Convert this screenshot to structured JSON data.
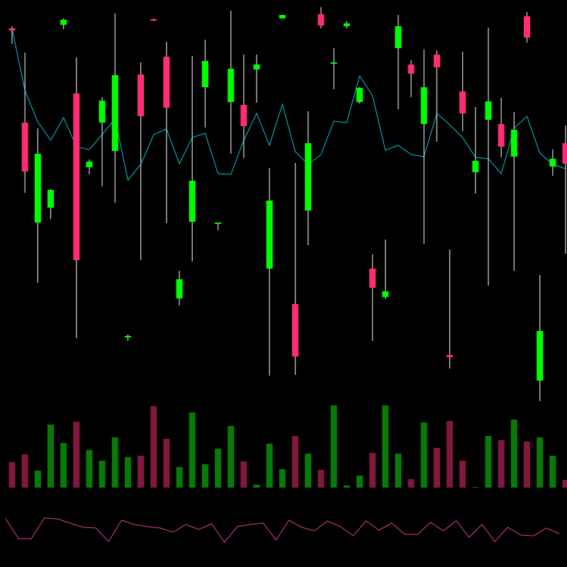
{
  "colors": {
    "background": "#000000",
    "bull_candle": "#00ff00",
    "bear_candle": "#ff2d78",
    "wick": "#c8c8c8",
    "bull_volume": "#087a08",
    "bear_volume": "#801840",
    "moving_average": "#00c8d8",
    "oscillator": "#e040a0"
  },
  "chart_data": [
    {
      "type": "candlestick",
      "title": "",
      "grid": false,
      "ohlc": [
        [
          56.0,
          56.3,
          53.8,
          55.7
        ],
        [
          42.7,
          52.6,
          32.8,
          35.8
        ],
        [
          28.6,
          41.9,
          20.1,
          38.3
        ],
        [
          30.7,
          33.3,
          29.1,
          33.2
        ],
        [
          56.5,
          57.4,
          55.9,
          57.2
        ],
        [
          46.8,
          51.9,
          12.3,
          23.3
        ],
        [
          36.4,
          37.5,
          35.4,
          37.2
        ],
        [
          42.7,
          46.3,
          33.7,
          45.8
        ],
        [
          38.7,
          58.1,
          31.4,
          49.4
        ],
        [
          12.5,
          12.8,
          11.9,
          12.6
        ],
        [
          49.5,
          51.2,
          23.3,
          43.6
        ],
        [
          57.3,
          57.4,
          57.0,
          57.1
        ],
        [
          52.0,
          54.1,
          28.5,
          44.8
        ],
        [
          17.9,
          21.8,
          16.9,
          20.6
        ],
        [
          28.7,
          52.1,
          23.1,
          34.5
        ],
        [
          47.7,
          54.4,
          42.0,
          51.4
        ],
        [
          28.4,
          28.6,
          27.5,
          28.6
        ],
        [
          45.6,
          58.5,
          38.3,
          50.3
        ],
        [
          45.2,
          52.3,
          37.7,
          42.2
        ],
        [
          50.2,
          52.3,
          45.5,
          50.9
        ],
        [
          22.1,
          36.3,
          7.0,
          31.7
        ],
        [
          57.4,
          57.9,
          57.4,
          57.9
        ],
        [
          17.1,
          37.0,
          7.1,
          9.7
        ],
        [
          30.3,
          44.3,
          25.4,
          39.8
        ],
        [
          58.0,
          59.0,
          56.0,
          56.4
        ],
        [
          51.1,
          53.2,
          47.4,
          51.2
        ],
        [
          56.3,
          57.0,
          56.0,
          56.7
        ],
        [
          45.6,
          47.7,
          45.4,
          47.6
        ],
        [
          22.1,
          24.1,
          11.9,
          19.4
        ],
        [
          18.1,
          26.2,
          17.8,
          18.9
        ],
        [
          53.2,
          57.9,
          44.6,
          56.3
        ],
        [
          50.9,
          51.5,
          46.3,
          49.6
        ],
        [
          42.5,
          53.0,
          25.6,
          47.7
        ],
        [
          52.3,
          52.9,
          40.0,
          50.5
        ],
        [
          9.9,
          24.8,
          8.0,
          9.6
        ],
        [
          47.1,
          52.7,
          41.5,
          44.0
        ],
        [
          35.7,
          44.9,
          32.7,
          37.3
        ],
        [
          43.1,
          56.1,
          19.7,
          45.7
        ],
        [
          42.5,
          46.2,
          37.8,
          39.3
        ],
        [
          37.9,
          44.2,
          21.8,
          41.7
        ],
        [
          57.7,
          58.3,
          54.0,
          54.7
        ],
        [
          6.3,
          21.2,
          3.4,
          13.3
        ],
        [
          36.5,
          38.9,
          35.2,
          37.6
        ],
        [
          39.8,
          42.3,
          24.2,
          36.9
        ]
      ],
      "moving_average": [
        56.0,
        47.2,
        42.8,
        40.2,
        43.4,
        39.3,
        38.9,
        41.0,
        43.3,
        34.6,
        36.8,
        41.0,
        41.8,
        36.9,
        40.6,
        41.2,
        35.5,
        35.4,
        40.2,
        44.0,
        39.5,
        45.3,
        38.6,
        36.8,
        38.2,
        42.9,
        42.7,
        49.3,
        46.5,
        38.8,
        39.5,
        38.2,
        37.9,
        44.0,
        42.4,
        40.6,
        37.8,
        37.6,
        35.5,
        41.9,
        43.6,
        38.4,
        36.8,
        36.2
      ],
      "price_range": [
        0,
        60
      ]
    },
    {
      "type": "bar",
      "title": "",
      "values": [
        36,
        47,
        24,
        89,
        63,
        93,
        53,
        38,
        71,
        43,
        45,
        115,
        69,
        29,
        106,
        33,
        55,
        87,
        37,
        4,
        62,
        26,
        73,
        48,
        25,
        116,
        3,
        17,
        49,
        116,
        48,
        12,
        92,
        56,
        94,
        38,
        1,
        73,
        67,
        96,
        65,
        71,
        45,
        11
      ],
      "direction": [
        "down",
        "down",
        "up",
        "up",
        "up",
        "down",
        "up",
        "up",
        "up",
        "up",
        "down",
        "down",
        "down",
        "up",
        "up",
        "up",
        "up",
        "up",
        "down",
        "up",
        "up",
        "up",
        "down",
        "up",
        "down",
        "up",
        "up",
        "up",
        "down",
        "up",
        "up",
        "down",
        "up",
        "down",
        "down",
        "down",
        "up",
        "up",
        "down",
        "up",
        "down",
        "up",
        "up",
        "down"
      ]
    },
    {
      "type": "line",
      "title": "",
      "values": [
        68,
        40,
        40,
        69,
        68,
        62,
        56,
        55,
        36,
        66,
        60,
        57,
        55,
        49,
        60,
        53,
        61,
        35,
        57,
        60,
        62,
        38,
        66,
        56,
        51,
        65,
        57,
        44,
        65,
        52,
        62,
        46,
        46,
        63,
        51,
        65,
        42,
        60,
        36,
        56,
        45,
        44,
        55,
        47
      ],
      "range": [
        0,
        100
      ]
    }
  ]
}
